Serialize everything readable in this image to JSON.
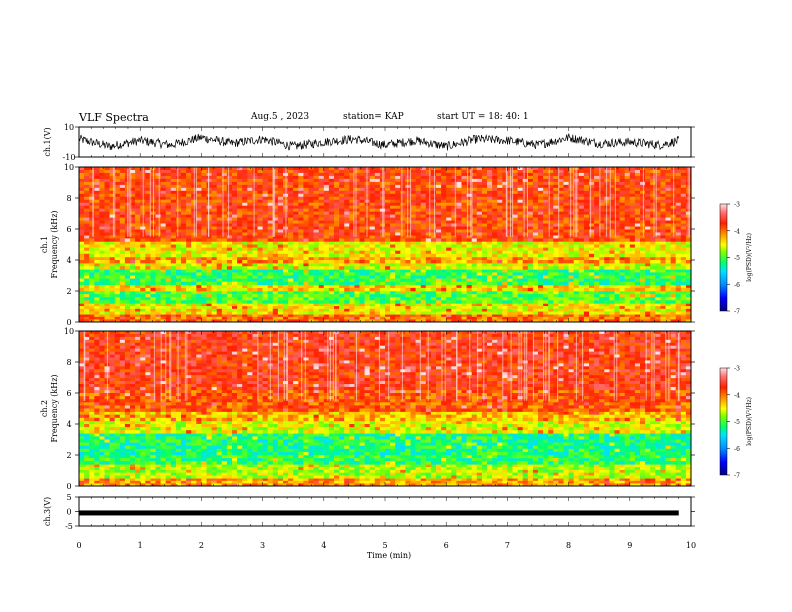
{
  "header": {
    "title": "VLF Spectra",
    "date": "Aug.5 , 2023",
    "station": "station= KAP",
    "start": "start UT = 18: 40: 1"
  },
  "colors": {
    "scale": [
      "#000080",
      "#0000ff",
      "#0080ff",
      "#00d0ff",
      "#00ff80",
      "#80ff00",
      "#ffff00",
      "#ffa000",
      "#ff4000",
      "#ff1010",
      "#ff8080",
      "#ffd8d8"
    ]
  },
  "chart_data": [
    {
      "type": "line",
      "panel": "ch1-waveform",
      "ylabel": "ch.1(V)",
      "ylim": [
        -10,
        10
      ],
      "yticks": [
        "10",
        "-10"
      ],
      "description_values": "noise waveform, roughly -5 to 5 V",
      "x": [
        0,
        0.5,
        1,
        1.5,
        2,
        2.5,
        3,
        3.5,
        4,
        4.5,
        5,
        5.5,
        6,
        6.5,
        7,
        7.5,
        8,
        8.5,
        9,
        9.5,
        9.8
      ],
      "values": [
        2,
        -3,
        1,
        -2,
        3,
        -1,
        2,
        -3,
        0,
        2,
        -2,
        1,
        -3,
        2,
        1,
        -2,
        3,
        -1,
        0,
        -2,
        1
      ]
    },
    {
      "type": "heatmap",
      "panel": "ch1-spectrogram",
      "ylabel": "ch.1 Frequency (kHz)",
      "ylim": [
        0,
        10
      ],
      "yticks": [
        "0",
        "2",
        "4",
        "6",
        "8",
        "10"
      ],
      "colorbar_label": "log(PSD)(V²/Hz)",
      "colorbar_ticks": [
        "-3",
        "-4",
        "-5",
        "-6",
        "-7"
      ],
      "colorbar_range": [
        -7,
        -3
      ],
      "bands_khz": [
        [
          0,
          0.5,
          -4.0
        ],
        [
          0.5,
          1.2,
          -4.5
        ],
        [
          1.2,
          2.0,
          -5.0
        ],
        [
          2.0,
          2.4,
          -4.4
        ],
        [
          2.4,
          3.4,
          -5.1
        ],
        [
          3.4,
          3.8,
          -4.6
        ],
        [
          3.8,
          4.2,
          -4.2
        ],
        [
          4.2,
          5.2,
          -4.5
        ],
        [
          5.2,
          10,
          -3.8
        ]
      ]
    },
    {
      "type": "heatmap",
      "panel": "ch2-spectrogram",
      "ylabel": "ch.2 Frequency (kHz)",
      "ylim": [
        0,
        10
      ],
      "yticks": [
        "0",
        "2",
        "4",
        "6",
        "8",
        "10"
      ],
      "colorbar_label": "log(PSD)(V²/Hz)",
      "colorbar_ticks": [
        "-3",
        "-4",
        "-5",
        "-6",
        "-7"
      ],
      "colorbar_range": [
        -7,
        -3
      ],
      "bands_khz": [
        [
          0,
          0.5,
          -4.2
        ],
        [
          0.5,
          1.4,
          -4.7
        ],
        [
          1.4,
          2.0,
          -5.1
        ],
        [
          2.0,
          3.4,
          -5.2
        ],
        [
          3.4,
          4.2,
          -4.6
        ],
        [
          4.2,
          4.8,
          -4.3
        ],
        [
          4.8,
          6.2,
          -3.9
        ],
        [
          6.2,
          10,
          -3.7
        ]
      ]
    },
    {
      "type": "line",
      "panel": "ch3-waveform",
      "ylabel": "ch.3(V)",
      "ylim": [
        -5,
        5
      ],
      "yticks": [
        "5",
        "0",
        "-5"
      ],
      "x": [
        0,
        9.8
      ],
      "values": [
        -0.5,
        -0.5
      ]
    }
  ],
  "xaxis": {
    "label": "Time (min)",
    "ticks": [
      "0",
      "1",
      "2",
      "3",
      "4",
      "5",
      "6",
      "7",
      "8",
      "9",
      "10"
    ],
    "range": [
      0,
      10
    ]
  }
}
